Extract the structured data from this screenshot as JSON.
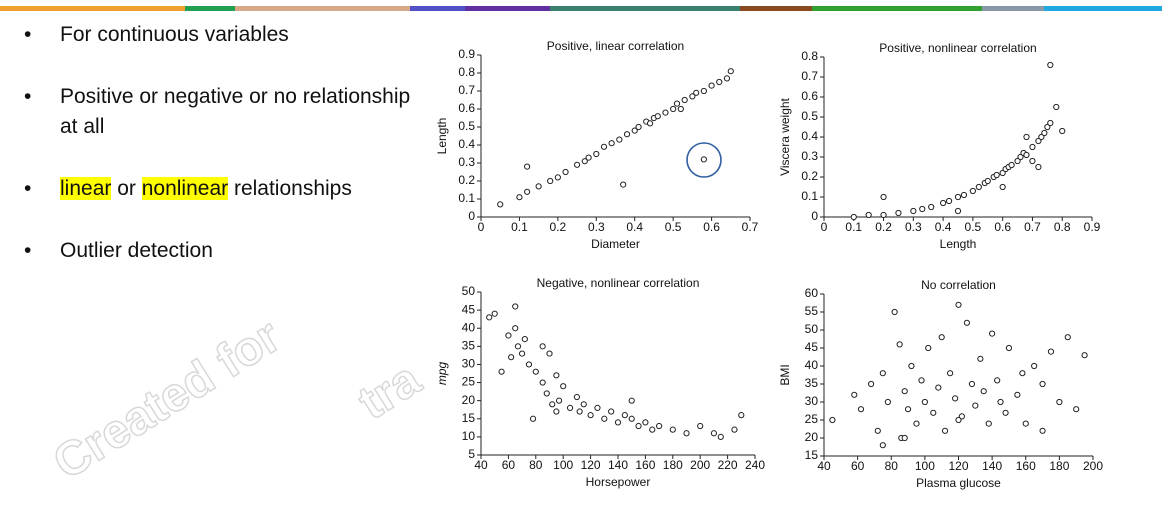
{
  "bullets": [
    "For continuous variables",
    "Positive or negative or no relationship at all",
    {
      "parts": [
        "linear",
        " or ",
        "nonlinear",
        " relationships"
      ],
      "highlighted": [
        0,
        2
      ]
    },
    "Outlier detection"
  ],
  "watermark": [
    "Created for",
    "tra"
  ],
  "chart_data": [
    {
      "type": "scatter",
      "title": "Positive, linear correlation",
      "xlabel": "Diameter",
      "ylabel": "Length",
      "xlim": [
        0,
        0.7
      ],
      "ylim": [
        0,
        0.9
      ],
      "xticks": [
        0,
        0.1,
        0.2,
        0.3,
        0.4,
        0.5,
        0.6,
        0.7
      ],
      "yticks": [
        0,
        0.1,
        0.2,
        0.3,
        0.4,
        0.5,
        0.6,
        0.7,
        0.8,
        0.9
      ],
      "x": [
        0.05,
        0.1,
        0.12,
        0.15,
        0.18,
        0.2,
        0.22,
        0.25,
        0.27,
        0.3,
        0.32,
        0.34,
        0.36,
        0.38,
        0.4,
        0.41,
        0.43,
        0.45,
        0.46,
        0.48,
        0.5,
        0.51,
        0.53,
        0.55,
        0.56,
        0.58,
        0.6,
        0.62,
        0.64,
        0.65,
        0.12,
        0.28,
        0.44,
        0.52,
        0.37,
        0.58
      ],
      "y": [
        0.07,
        0.11,
        0.14,
        0.17,
        0.2,
        0.22,
        0.25,
        0.29,
        0.31,
        0.35,
        0.39,
        0.41,
        0.43,
        0.46,
        0.48,
        0.5,
        0.53,
        0.55,
        0.56,
        0.58,
        0.6,
        0.63,
        0.65,
        0.67,
        0.69,
        0.7,
        0.73,
        0.75,
        0.77,
        0.81,
        0.28,
        0.33,
        0.52,
        0.6,
        0.18,
        0.32
      ]
    },
    {
      "type": "scatter",
      "title": "Positive, nonlinear correlation",
      "xlabel": "Length",
      "ylabel": "Viscera weight",
      "xlim": [
        0,
        0.9
      ],
      "ylim": [
        0,
        0.8
      ],
      "xticks": [
        0,
        0.1,
        0.2,
        0.3,
        0.4,
        0.5,
        0.6,
        0.7,
        0.8,
        0.9
      ],
      "yticks": [
        0,
        0.1,
        0.2,
        0.3,
        0.4,
        0.5,
        0.6,
        0.7,
        0.8
      ],
      "x": [
        0.1,
        0.15,
        0.2,
        0.25,
        0.3,
        0.33,
        0.36,
        0.4,
        0.42,
        0.45,
        0.47,
        0.5,
        0.52,
        0.54,
        0.55,
        0.57,
        0.58,
        0.6,
        0.61,
        0.62,
        0.63,
        0.65,
        0.66,
        0.67,
        0.68,
        0.7,
        0.7,
        0.72,
        0.73,
        0.74,
        0.75,
        0.76,
        0.78,
        0.8,
        0.45,
        0.6,
        0.68,
        0.72,
        0.2,
        0.76
      ],
      "y": [
        0.0,
        0.01,
        0.01,
        0.02,
        0.03,
        0.04,
        0.05,
        0.07,
        0.08,
        0.1,
        0.11,
        0.13,
        0.15,
        0.17,
        0.18,
        0.2,
        0.21,
        0.22,
        0.24,
        0.25,
        0.26,
        0.28,
        0.3,
        0.32,
        0.31,
        0.35,
        0.28,
        0.38,
        0.4,
        0.42,
        0.45,
        0.47,
        0.55,
        0.43,
        0.03,
        0.15,
        0.4,
        0.25,
        0.1,
        0.76
      ]
    },
    {
      "type": "scatter",
      "title": "Negative, nonlinear correlation",
      "xlabel": "Horsepower",
      "ylabel": "mpg",
      "xlim": [
        40,
        240
      ],
      "ylim": [
        5,
        50
      ],
      "xticks": [
        40,
        60,
        80,
        100,
        120,
        140,
        160,
        180,
        200,
        220,
        240
      ],
      "yticks": [
        5,
        10,
        15,
        20,
        25,
        30,
        35,
        40,
        45,
        50
      ],
      "x": [
        46,
        50,
        55,
        60,
        62,
        65,
        67,
        70,
        72,
        75,
        78,
        80,
        85,
        88,
        90,
        92,
        95,
        97,
        100,
        105,
        110,
        112,
        115,
        120,
        125,
        130,
        135,
        140,
        145,
        150,
        155,
        160,
        165,
        170,
        180,
        190,
        200,
        210,
        215,
        225,
        230,
        65,
        85,
        95,
        150
      ],
      "y": [
        43,
        44,
        28,
        38,
        32,
        46,
        35,
        33,
        37,
        30,
        15,
        28,
        25,
        22,
        33,
        19,
        27,
        20,
        24,
        18,
        21,
        17,
        19,
        16,
        18,
        15,
        17,
        14,
        16,
        15,
        13,
        14,
        12,
        13,
        12,
        11,
        13,
        11,
        10,
        12,
        16,
        40,
        35,
        17,
        20
      ]
    },
    {
      "type": "scatter",
      "title": "No correlation",
      "xlabel": "Plasma glucose",
      "ylabel": "BMI",
      "xlim": [
        40,
        200
      ],
      "ylim": [
        15,
        60
      ],
      "xticks": [
        40,
        60,
        80,
        100,
        120,
        140,
        160,
        180,
        200
      ],
      "yticks": [
        15,
        20,
        25,
        30,
        35,
        40,
        45,
        50,
        55,
        60
      ],
      "x": [
        45,
        58,
        62,
        68,
        72,
        75,
        78,
        82,
        85,
        86,
        88,
        90,
        92,
        95,
        98,
        100,
        102,
        105,
        108,
        110,
        112,
        115,
        118,
        120,
        122,
        125,
        128,
        130,
        133,
        135,
        138,
        140,
        143,
        145,
        148,
        150,
        155,
        158,
        160,
        165,
        170,
        175,
        180,
        185,
        190,
        195,
        88,
        120,
        170,
        75
      ],
      "y": [
        25,
        32,
        28,
        35,
        22,
        38,
        30,
        55,
        46,
        20,
        33,
        28,
        40,
        24,
        36,
        30,
        45,
        27,
        34,
        48,
        22,
        38,
        31,
        57,
        26,
        52,
        35,
        29,
        42,
        33,
        24,
        49,
        36,
        30,
        27,
        45,
        32,
        38,
        24,
        40,
        35,
        44,
        30,
        48,
        28,
        43,
        20,
        25,
        22,
        18
      ]
    }
  ]
}
